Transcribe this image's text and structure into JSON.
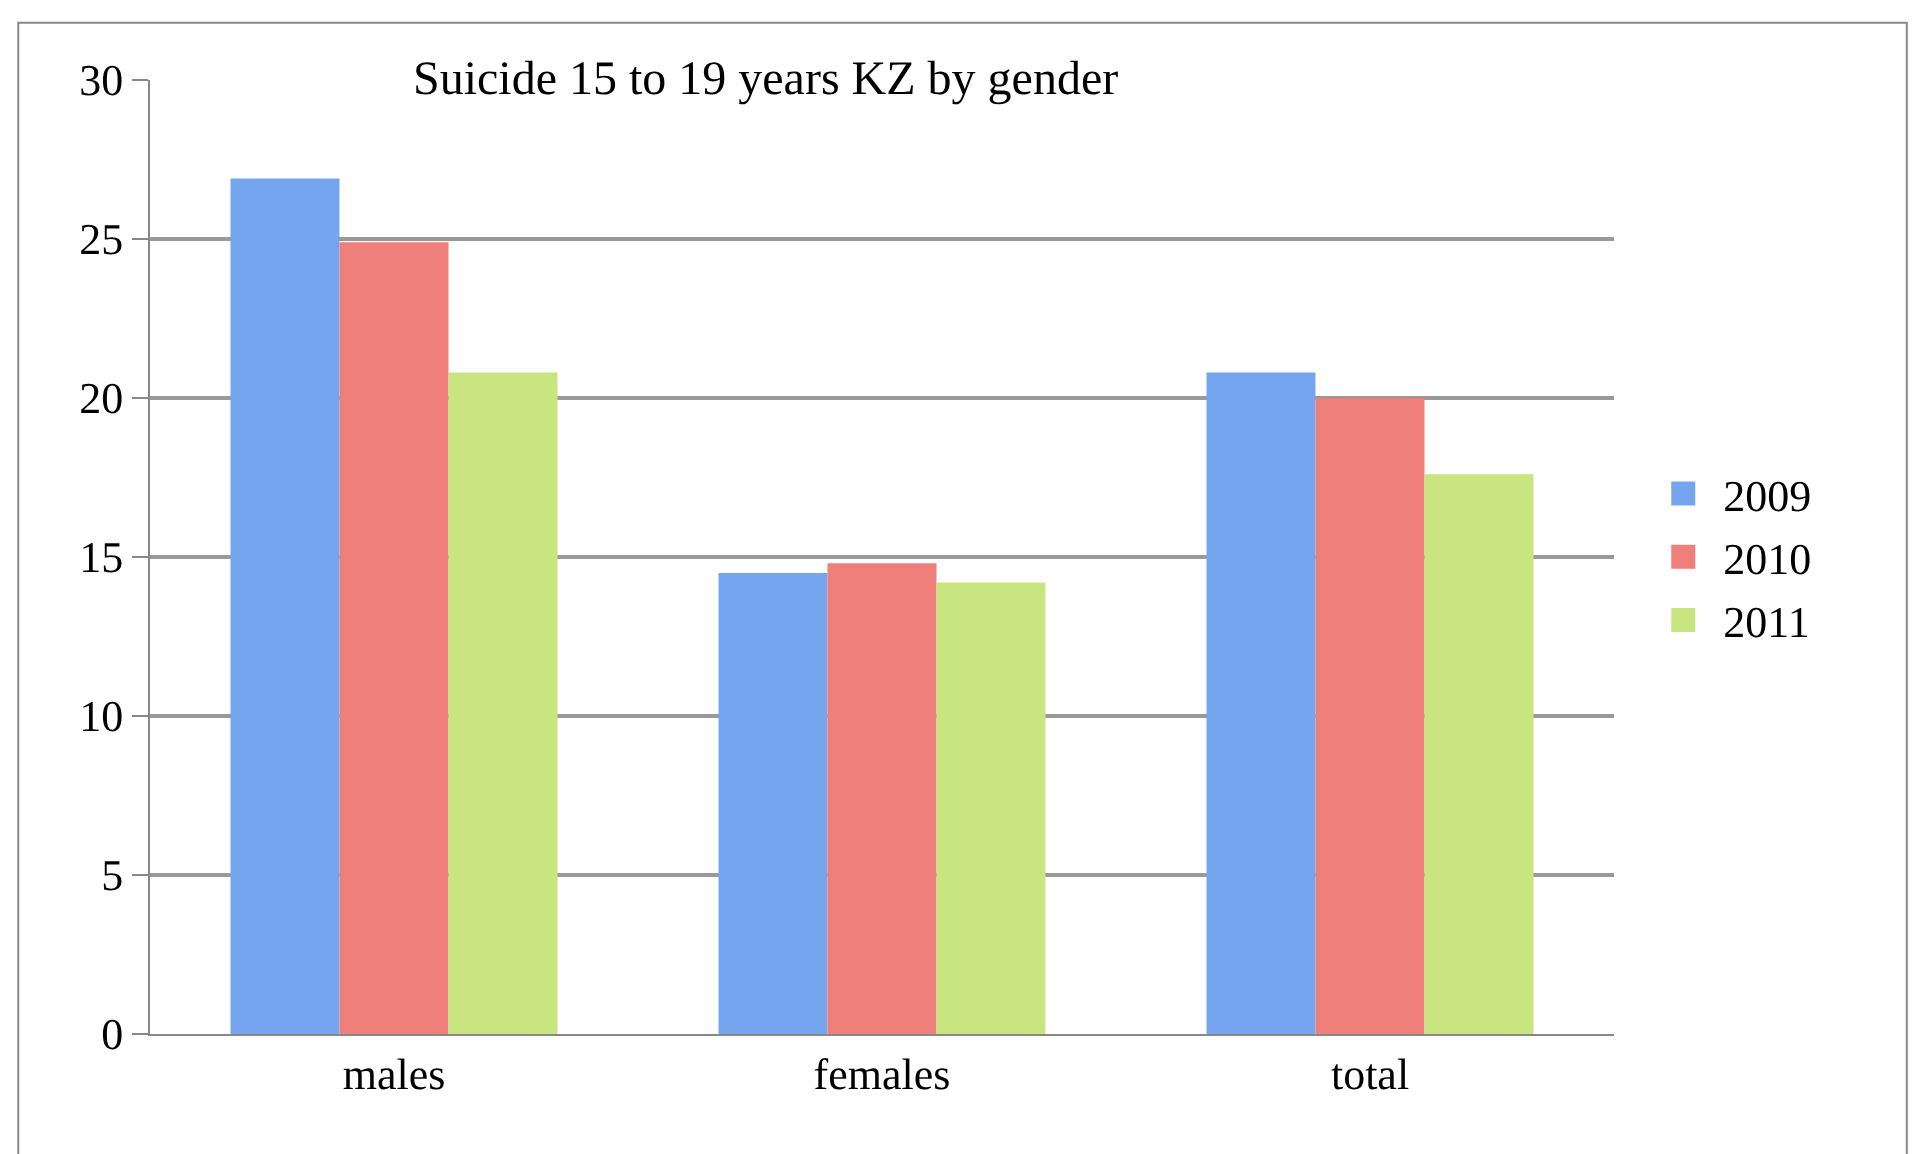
{
  "chart_data": {
    "type": "bar",
    "title": "Suicide 15 to 19 years KZ by gender",
    "categories": [
      "males",
      "females",
      "total"
    ],
    "series": [
      {
        "name": "2009",
        "color": "#75a5ee",
        "values": [
          26.9,
          14.5,
          20.8
        ]
      },
      {
        "name": "2010",
        "color": "#ef7f7a",
        "values": [
          24.9,
          14.8,
          20.0
        ]
      },
      {
        "name": "2011",
        "color": "#c9e57f",
        "values": [
          20.8,
          14.2,
          17.6
        ]
      }
    ],
    "ylim": [
      0,
      30
    ],
    "yticks": [
      0,
      5,
      10,
      15,
      20,
      25,
      30
    ],
    "grid": "y",
    "legend": "right"
  }
}
